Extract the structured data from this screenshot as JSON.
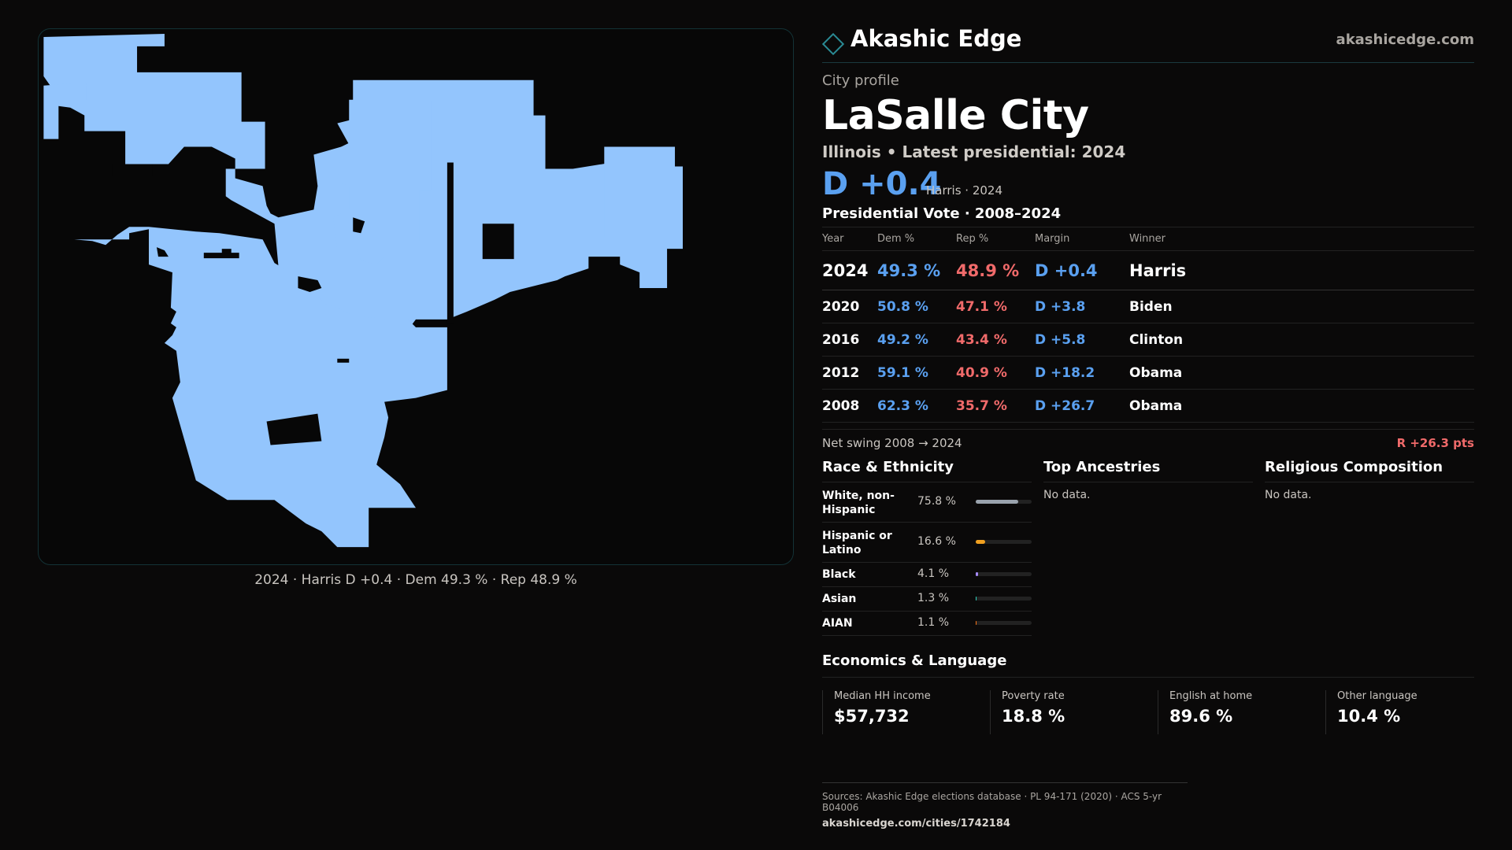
{
  "header": {
    "brand": "Akashic Edge",
    "site": "akashicedge.com",
    "logo_icon": "diamond-logo-icon"
  },
  "profile": {
    "kicker": "City profile",
    "city": "LaSalle City",
    "subtitle": "Illinois • Latest presidential: 2024",
    "margin": "D +0.4",
    "margin_note": "Harris · 2024"
  },
  "map": {
    "caption": "2024 · Harris D +0.4 · Dem 49.3 % · Rep 48.9 %",
    "fill_color": "#93c5fd"
  },
  "votes": {
    "title": "Presidential Vote · 2008–2024",
    "headers": {
      "year": "Year",
      "dem": "Dem %",
      "rep": "Rep %",
      "margin": "Margin",
      "winner": "Winner"
    },
    "rows": [
      {
        "year": "2024",
        "dem": "49.3 %",
        "rep": "48.9 %",
        "margin": "D +0.4",
        "winner": "Harris"
      },
      {
        "year": "2020",
        "dem": "50.8 %",
        "rep": "47.1 %",
        "margin": "D +3.8",
        "winner": "Biden"
      },
      {
        "year": "2016",
        "dem": "49.2 %",
        "rep": "43.4 %",
        "margin": "D +5.8",
        "winner": "Clinton"
      },
      {
        "year": "2012",
        "dem": "59.1 %",
        "rep": "40.9 %",
        "margin": "D +18.2",
        "winner": "Obama"
      },
      {
        "year": "2008",
        "dem": "62.3 %",
        "rep": "35.7 %",
        "margin": "D +26.7",
        "winner": "Obama"
      }
    ],
    "swing_label": "Net swing 2008 → 2024",
    "swing_value": "R +26.3 pts"
  },
  "race": {
    "title": "Race & Ethnicity",
    "rows": [
      {
        "label": "White, non-Hispanic",
        "pct": "75.8 %",
        "value": 75.8,
        "color": "#9aa3ad"
      },
      {
        "label": "Hispanic or Latino",
        "pct": "16.6 %",
        "value": 16.6,
        "color": "#f0a020"
      },
      {
        "label": "Black",
        "pct": "4.1 %",
        "value": 4.1,
        "color": "#a78bfa"
      },
      {
        "label": "Asian",
        "pct": "1.3 %",
        "value": 1.3,
        "color": "#2dd4bf"
      },
      {
        "label": "AIAN",
        "pct": "1.1 %",
        "value": 1.1,
        "color": "#f97316"
      }
    ]
  },
  "ancestries": {
    "title": "Top Ancestries",
    "empty": "No data."
  },
  "religion": {
    "title": "Religious Composition",
    "empty": "No data."
  },
  "economics": {
    "title": "Economics & Language",
    "cells": [
      {
        "label": "Median HH income",
        "value": "$57,732"
      },
      {
        "label": "Poverty rate",
        "value": "18.8 %"
      },
      {
        "label": "English at home",
        "value": "89.6 %"
      },
      {
        "label": "Other language",
        "value": "10.4 %"
      }
    ]
  },
  "footer": {
    "sources": "Sources: Akashic Edge elections database · PL 94-171 (2020) · ACS 5-yr B04006",
    "url": "akashicedge.com/cities/1742184"
  }
}
